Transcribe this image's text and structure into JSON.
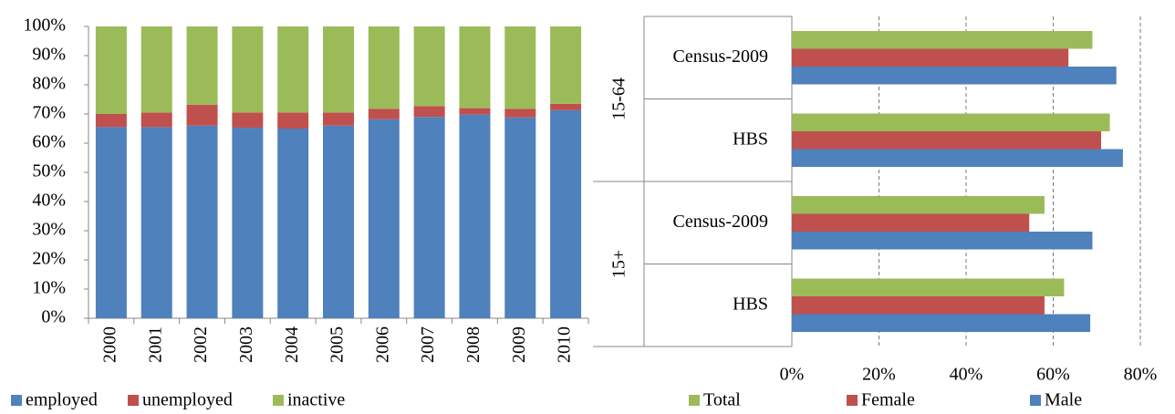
{
  "chart_data": [
    {
      "type": "stacked_bar",
      "categories": [
        "2000",
        "2001",
        "2002",
        "2003",
        "2004",
        "2005",
        "2006",
        "2007",
        "2008",
        "2009",
        "2010"
      ],
      "series": [
        {
          "name": "employed",
          "color": "#4f81bd",
          "values": [
            65.5,
            65.5,
            66,
            65.3,
            65,
            66,
            68.2,
            69,
            69.8,
            68.8,
            71.3
          ]
        },
        {
          "name": "unemployed",
          "color": "#c0504d",
          "values": [
            4.5,
            5,
            7.2,
            5.2,
            5.5,
            4.5,
            3.6,
            3.7,
            2.2,
            3,
            2.2
          ]
        },
        {
          "name": "inactive",
          "color": "#9bbb59",
          "values": [
            30,
            29.5,
            26.8,
            29.5,
            29.5,
            29.5,
            28.2,
            27.3,
            28,
            28.2,
            26.5
          ]
        }
      ],
      "ylim": [
        0,
        100
      ],
      "yticks": [
        {
          "value": 0,
          "label": "0%"
        },
        {
          "value": 10,
          "label": "10%"
        },
        {
          "value": 20,
          "label": "20%"
        },
        {
          "value": 30,
          "label": "30%"
        },
        {
          "value": 40,
          "label": "40%"
        },
        {
          "value": 50,
          "label": "50%"
        },
        {
          "value": 60,
          "label": "60%"
        },
        {
          "value": 70,
          "label": "70%"
        },
        {
          "value": 80,
          "label": "80%"
        },
        {
          "value": 90,
          "label": "90%"
        },
        {
          "value": 100,
          "label": "100%"
        }
      ]
    },
    {
      "type": "hbar",
      "groups": [
        {
          "name": "15-64",
          "categories": [
            "Census-2009",
            "HBS"
          ]
        },
        {
          "name": "15+",
          "categories": [
            "Census-2009",
            "HBS"
          ]
        }
      ],
      "series": [
        {
          "name": "Total",
          "color": "#9bbb59",
          "values": [
            69,
            73,
            58,
            62.5
          ]
        },
        {
          "name": "Female",
          "color": "#c0504d",
          "values": [
            63.5,
            71,
            54.5,
            58
          ]
        },
        {
          "name": "Male",
          "color": "#4f81bd",
          "values": [
            74.5,
            76,
            69,
            68.5
          ]
        }
      ],
      "xlim": [
        0,
        80
      ],
      "xticks": [
        {
          "value": 0,
          "label": "0%"
        },
        {
          "value": 20,
          "label": "20%"
        },
        {
          "value": 40,
          "label": "40%"
        },
        {
          "value": 60,
          "label": "60%"
        },
        {
          "value": 80,
          "label": "80%"
        }
      ],
      "grid": true
    }
  ]
}
